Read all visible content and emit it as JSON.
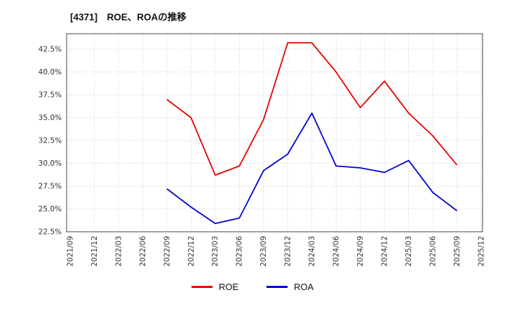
{
  "chart_data": {
    "type": "line",
    "title": "[4371]　ROE、ROAの推移",
    "categories": [
      "2021/09",
      "2021/12",
      "2022/03",
      "2022/06",
      "2022/09",
      "2022/12",
      "2023/03",
      "2023/06",
      "2023/09",
      "2023/12",
      "2024/03",
      "2024/06",
      "2024/09",
      "2024/12",
      "2025/03",
      "2025/06",
      "2025/09",
      "2025/12"
    ],
    "series": [
      {
        "name": "ROE",
        "color": "#e60000",
        "values": [
          null,
          null,
          null,
          null,
          37.0,
          35.0,
          28.7,
          29.7,
          34.8,
          43.2,
          43.2,
          40.0,
          36.1,
          39.0,
          35.5,
          33.0,
          29.8,
          null
        ]
      },
      {
        "name": "ROA",
        "color": "#0000cc",
        "values": [
          null,
          null,
          null,
          null,
          27.2,
          25.2,
          23.4,
          24.0,
          29.2,
          31.0,
          35.5,
          29.7,
          29.5,
          29.0,
          30.3,
          26.8,
          24.8,
          null
        ]
      }
    ],
    "ylim": [
      22.5,
      44.2
    ],
    "yticks": [
      22.5,
      25.0,
      27.5,
      30.0,
      32.5,
      35.0,
      37.5,
      40.0,
      42.5
    ],
    "ytick_suffix": "%",
    "grid": true,
    "grid_style": "dotted",
    "legend_position": "bottom"
  }
}
